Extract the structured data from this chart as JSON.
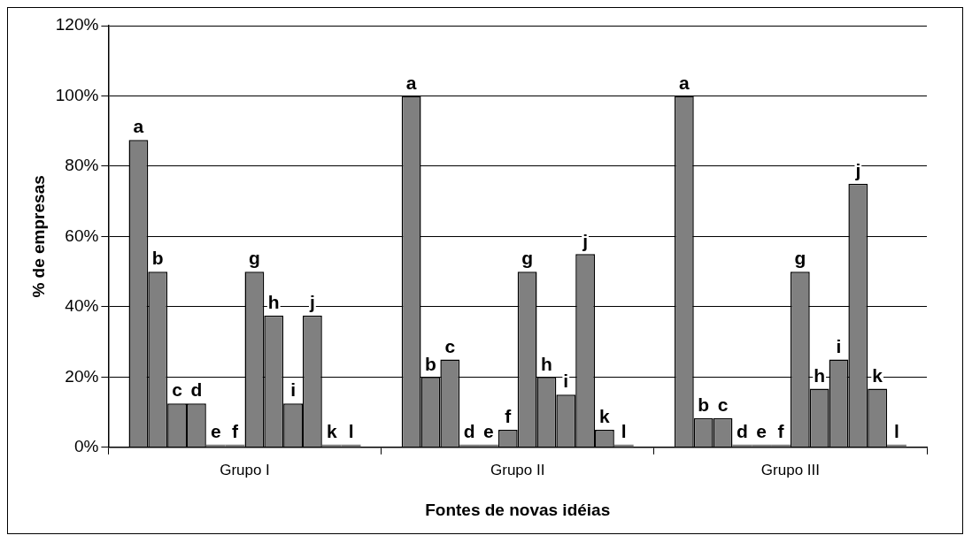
{
  "chart_data": {
    "type": "bar",
    "xlabel": "Fontes de novas idéias",
    "ylabel": "% de empresas",
    "categories": [
      "Grupo I",
      "Grupo II",
      "Grupo III"
    ],
    "series": [
      {
        "name": "a",
        "color": "#808080",
        "values": [
          87.5,
          100,
          100
        ]
      },
      {
        "name": "b",
        "color": "#808080",
        "values": [
          50,
          20,
          8.3
        ]
      },
      {
        "name": "c",
        "color": "#808080",
        "values": [
          12.5,
          25,
          8.3
        ]
      },
      {
        "name": "d",
        "color": "#808080",
        "values": [
          12.5,
          0,
          0
        ]
      },
      {
        "name": "e",
        "color": "#808080",
        "values": [
          0,
          0,
          0
        ]
      },
      {
        "name": "f",
        "color": "#808080",
        "values": [
          0,
          5,
          0
        ]
      },
      {
        "name": "g",
        "color": "#808080",
        "values": [
          50,
          50,
          50
        ]
      },
      {
        "name": "h",
        "color": "#808080",
        "values": [
          37.5,
          20,
          16.7
        ]
      },
      {
        "name": "i",
        "color": "#808080",
        "values": [
          12.5,
          15,
          25
        ]
      },
      {
        "name": "j",
        "color": "#808080",
        "values": [
          37.5,
          55,
          75
        ]
      },
      {
        "name": "k",
        "color": "#808080",
        "values": [
          0,
          5,
          16.7
        ]
      },
      {
        "name": "l",
        "color": "#808080",
        "values": [
          0,
          0,
          0
        ]
      }
    ],
    "ylim": [
      0,
      120
    ],
    "yticks": [
      {
        "value": 0,
        "label": "0%"
      },
      {
        "value": 20,
        "label": "20%"
      },
      {
        "value": 40,
        "label": "40%"
      },
      {
        "value": 60,
        "label": "60%"
      },
      {
        "value": 80,
        "label": "80%"
      },
      {
        "value": 100,
        "label": "100%"
      },
      {
        "value": 120,
        "label": "120%"
      }
    ],
    "grid": "y",
    "legend": false
  }
}
